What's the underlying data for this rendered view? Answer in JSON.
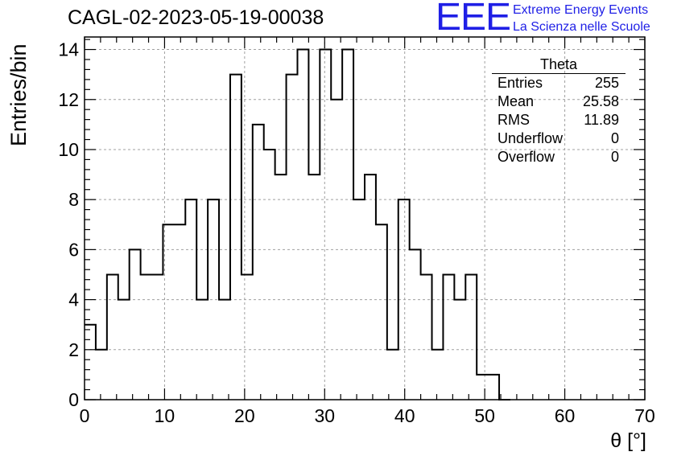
{
  "header": {
    "run_title": "CAGL-02-2023-05-19-00038",
    "logo_mark": "EEE",
    "logo_line1": "Extreme Energy Events",
    "logo_line2": "La Scienza nelle Scuole"
  },
  "stats_box": {
    "title": "Theta",
    "rows": [
      {
        "label": "Entries",
        "value": "255"
      },
      {
        "label": "Mean",
        "value": "25.58"
      },
      {
        "label": "RMS",
        "value": "11.89"
      },
      {
        "label": "Underflow",
        "value": "0"
      },
      {
        "label": "Overflow",
        "value": "0"
      }
    ]
  },
  "chart_data": {
    "type": "bar",
    "histogram": true,
    "title": "CAGL-02-2023-05-19-00038",
    "xlabel": "θ [°]",
    "ylabel": "Entries/bin",
    "xlim": [
      0,
      70
    ],
    "ylim": [
      0,
      14.5
    ],
    "bin_width": 1.4,
    "xticks": [
      0,
      10,
      20,
      30,
      40,
      50,
      60,
      70
    ],
    "yticks": [
      0,
      2,
      4,
      6,
      8,
      10,
      12,
      14
    ],
    "grid": true,
    "line_color": "#000000",
    "grid_color": "#a0a0a0",
    "values": [
      3,
      2,
      5,
      4,
      6,
      5,
      5,
      7,
      7,
      8,
      4,
      8,
      4,
      13,
      5,
      11,
      10,
      9,
      13,
      14,
      9,
      14,
      12,
      14,
      8,
      9,
      7,
      2,
      8,
      6,
      5,
      2,
      5,
      4,
      5,
      1,
      1,
      0
    ]
  }
}
